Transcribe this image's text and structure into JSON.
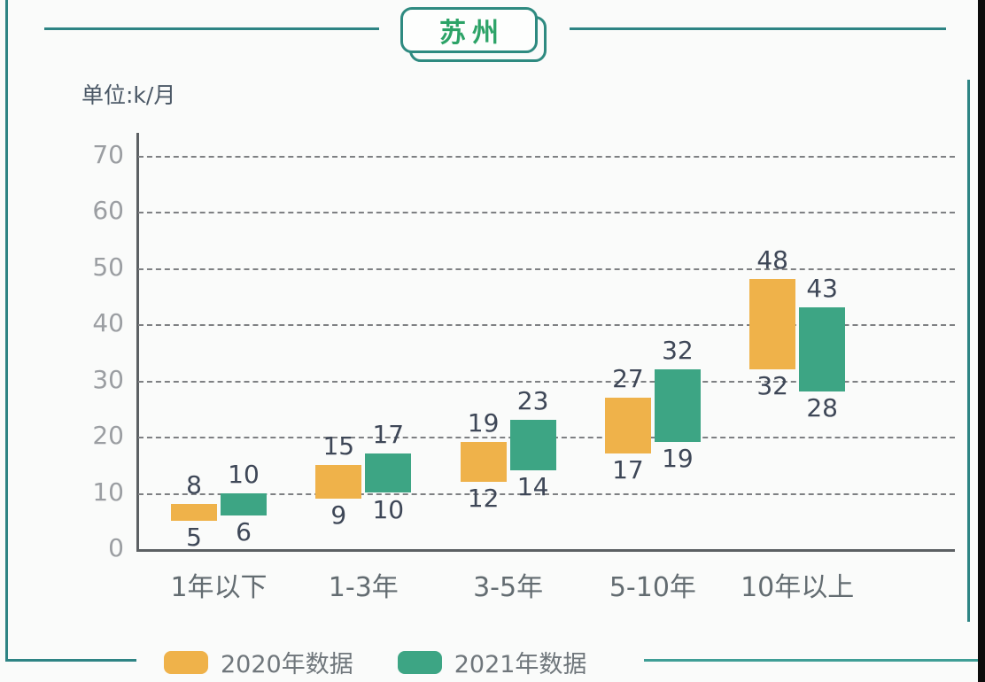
{
  "page": {
    "title_badge": "苏州",
    "unit_label": "单位:k/月",
    "background": "#fafbfa",
    "accent_border_color": "#2e8484",
    "badge_text_color": "#2ca367"
  },
  "chart_data": {
    "type": "bar",
    "variant": "floating-range-bar",
    "title": "苏州",
    "ylabel": "单位:k/月",
    "categories": [
      "1年以下",
      "1-3年",
      "3-5年",
      "5-10年",
      "10年以上"
    ],
    "series": [
      {
        "name": "2020年数据",
        "color": "#EFB24A",
        "ranges": [
          [
            5,
            8
          ],
          [
            9,
            15
          ],
          [
            12,
            19
          ],
          [
            17,
            27
          ],
          [
            32,
            48
          ]
        ]
      },
      {
        "name": "2021年数据",
        "color": "#3DA584",
        "ranges": [
          [
            6,
            10
          ],
          [
            10,
            17
          ],
          [
            14,
            23
          ],
          [
            19,
            32
          ],
          [
            28,
            43
          ]
        ]
      }
    ],
    "ylim": [
      0,
      70
    ],
    "yticks": [
      0,
      10,
      20,
      30,
      40,
      50,
      60,
      70
    ],
    "grid": "horizontal-dashed",
    "legend_position": "bottom-left"
  }
}
